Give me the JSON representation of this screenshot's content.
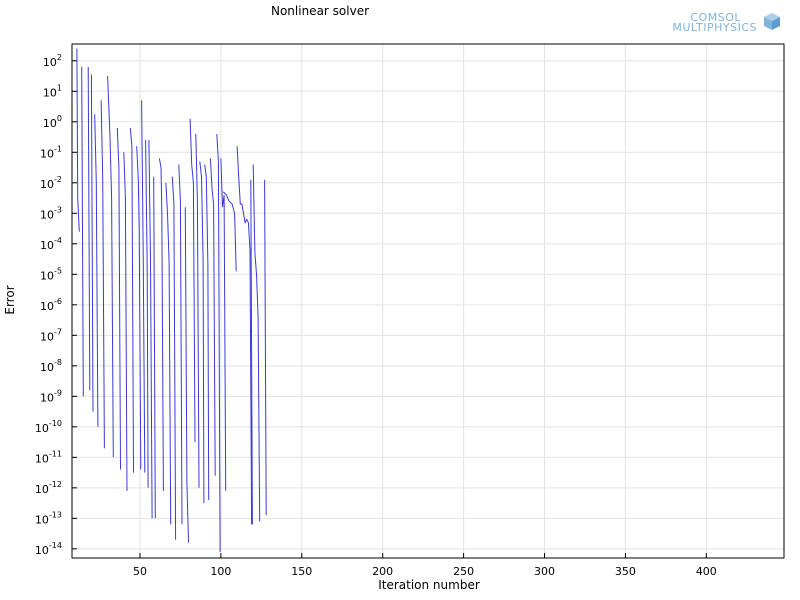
{
  "chart_data": {
    "type": "line",
    "title": "Nonlinear solver",
    "xlabel": "Iteration number",
    "ylabel": "Error",
    "xlim": [
      8,
      448
    ],
    "ylim_log10": [
      -14.3,
      2.55
    ],
    "y_scale": "log",
    "grid": true,
    "x_ticks": [
      50,
      100,
      150,
      200,
      250,
      300,
      350,
      400
    ],
    "y_ticks": [
      {
        "exp": 2,
        "label": "2"
      },
      {
        "exp": 1,
        "label": "1"
      },
      {
        "exp": 0,
        "label": "0"
      },
      {
        "exp": -1,
        "label": "-1"
      },
      {
        "exp": -2,
        "label": "-2"
      },
      {
        "exp": -3,
        "label": "-3"
      },
      {
        "exp": -4,
        "label": "-4"
      },
      {
        "exp": -5,
        "label": "-5"
      },
      {
        "exp": -6,
        "label": "-6"
      },
      {
        "exp": -7,
        "label": "-7"
      },
      {
        "exp": -8,
        "label": "-8"
      },
      {
        "exp": -9,
        "label": "-9"
      },
      {
        "exp": -10,
        "label": "-10"
      },
      {
        "exp": -11,
        "label": "-11"
      },
      {
        "exp": -12,
        "label": "-12"
      },
      {
        "exp": -13,
        "label": "-13"
      },
      {
        "exp": -14,
        "label": "-14"
      }
    ],
    "y_tick_base": "10",
    "line_color": "#3a3ad8",
    "series": [
      {
        "segments": [
          [
            [
              11,
              2.4
            ],
            [
              11.5,
              -2.5
            ],
            [
              12.5,
              -3.6
            ]
          ],
          [
            [
              14,
              1.8
            ],
            [
              15,
              -9.0
            ]
          ],
          [
            [
              18,
              1.8
            ],
            [
              19,
              -8.8
            ]
          ],
          [
            [
              20,
              1.55
            ],
            [
              21,
              -9.5
            ]
          ],
          [
            [
              22,
              0.25
            ],
            [
              23,
              -2.0
            ],
            [
              24,
              -10.0
            ]
          ],
          [
            [
              26,
              0.7
            ],
            [
              27,
              -1.8
            ],
            [
              28,
              -10.7
            ]
          ],
          [
            [
              30,
              1.5
            ],
            [
              31.5,
              -0.5
            ],
            [
              32.5,
              -2.5
            ],
            [
              33.5,
              -11.0
            ]
          ],
          [
            [
              36,
              -0.2
            ],
            [
              37,
              -1.5
            ],
            [
              38,
              -11.4
            ]
          ],
          [
            [
              40,
              -1.0
            ],
            [
              41,
              -2.5
            ],
            [
              42,
              -12.1
            ]
          ],
          [
            [
              44,
              -0.2
            ],
            [
              45,
              -0.8
            ],
            [
              46,
              -11.5
            ]
          ],
          [
            [
              48,
              -0.8
            ],
            [
              49,
              -1.9
            ],
            [
              49.5,
              -3.5
            ],
            [
              50.5,
              -11.4
            ]
          ],
          [
            [
              51,
              0.7
            ],
            [
              52,
              -4.3
            ],
            [
              53,
              -11.5
            ]
          ],
          [
            [
              53.5,
              -0.6
            ],
            [
              54.5,
              -4.8
            ],
            [
              55,
              -12.0
            ]
          ],
          [
            [
              55.5,
              -0.6
            ],
            [
              56.5,
              -4.5
            ],
            [
              57.5,
              -13.0
            ]
          ],
          [
            [
              58.5,
              -1.8
            ],
            [
              59.5,
              -13.0
            ]
          ],
          [
            [
              62,
              -1.2
            ],
            [
              63,
              -1.5
            ],
            [
              63.5,
              -2.9
            ],
            [
              64.5,
              -12.1
            ]
          ],
          [
            [
              66,
              -2.0
            ],
            [
              67,
              -3.0
            ],
            [
              68,
              -4.6
            ],
            [
              69,
              -13.2
            ]
          ],
          [
            [
              70,
              -1.8
            ],
            [
              71,
              -2.7
            ],
            [
              72,
              -13.7
            ]
          ],
          [
            [
              74,
              -1.4
            ],
            [
              75,
              -2.6
            ],
            [
              76,
              -13.2
            ]
          ],
          [
            [
              78,
              -2.8
            ],
            [
              79,
              -11.8
            ],
            [
              80,
              -13.8
            ]
          ],
          [
            [
              81,
              0.1
            ],
            [
              82,
              -1.4
            ],
            [
              83,
              -2.0
            ],
            [
              84,
              -10.5
            ]
          ],
          [
            [
              84.5,
              -0.4
            ],
            [
              85.5,
              -2.6
            ],
            [
              86.5,
              -12.0
            ]
          ],
          [
            [
              87,
              -1.3
            ],
            [
              88,
              -1.8
            ],
            [
              89,
              -4.5
            ],
            [
              89.5,
              -12.5
            ]
          ],
          [
            [
              90,
              -1.4
            ],
            [
              91,
              -1.8
            ],
            [
              92,
              -4.7
            ],
            [
              92.5,
              -12.4
            ]
          ],
          [
            [
              93.5,
              -1.2
            ],
            [
              94.5,
              -2.2
            ],
            [
              95.5,
              -2.7
            ],
            [
              96.5,
              -11.6
            ]
          ],
          [
            [
              97.5,
              -0.4
            ],
            [
              98.5,
              -1.3
            ],
            [
              99.5,
              -14.1
            ]
          ],
          [
            [
              100,
              -1.2
            ],
            [
              101,
              -2.8
            ],
            [
              102,
              -2.4
            ],
            [
              103,
              -12.1
            ]
          ],
          [
            [
              101.5,
              -2.3
            ],
            [
              103.5,
              -2.4
            ],
            [
              105,
              -2.6
            ],
            [
              107,
              -2.7
            ],
            [
              108.5,
              -3.0
            ],
            [
              109.5,
              -4.9
            ]
          ],
          [
            [
              110,
              -0.8
            ],
            [
              111,
              -1.8
            ],
            [
              112,
              -2.7
            ],
            [
              113,
              -2.7
            ],
            [
              114,
              -3.0
            ],
            [
              115,
              -3.3
            ],
            [
              116,
              -3.2
            ],
            [
              117,
              -3.3
            ],
            [
              118,
              -4.2
            ],
            [
              119,
              -13.2
            ]
          ],
          [
            [
              120,
              -1.4
            ],
            [
              121,
              -4.3
            ],
            [
              122,
              -5.0
            ],
            [
              123,
              -6.4
            ],
            [
              124,
              -13.1
            ]
          ],
          [
            [
              118.5,
              -1.9
            ],
            [
              119.5,
              -13.2
            ]
          ],
          [
            [
              127,
              -1.9
            ],
            [
              128,
              -12.9
            ]
          ]
        ]
      }
    ]
  },
  "logo": {
    "line1": "COMSOL",
    "line2": "MULTIPHYSICS"
  }
}
